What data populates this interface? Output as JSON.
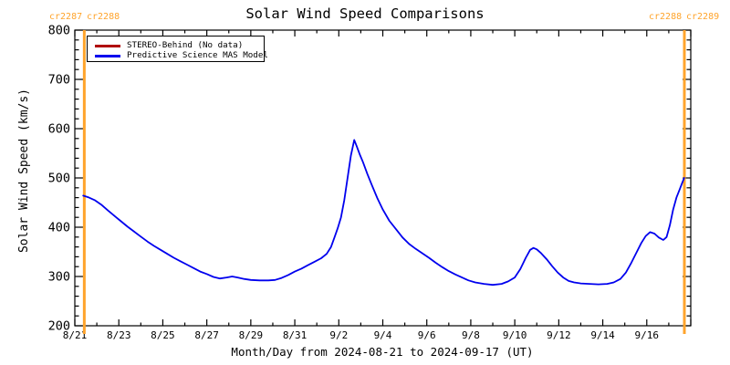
{
  "title_bar": {
    "app_title": "Solar Wind Speed Comparisons"
  },
  "colors": {
    "orange": "#FFA42C",
    "blue": "#0000EE",
    "red": "#B00000",
    "black": "#000000",
    "background": "#FFFFFF"
  },
  "carrington": {
    "left": [
      "cr2287",
      "cr2288"
    ],
    "right": [
      "cr2288",
      "cr2289"
    ]
  },
  "legend": {
    "position": "top-left",
    "items": [
      {
        "label": "STEREO-Behind (No data)",
        "color_hex": "#B00000"
      },
      {
        "label": "Predictive Science MAS Model",
        "color_hex": "#0000EE"
      }
    ]
  },
  "chart_data": {
    "type": "line",
    "title": "Solar Wind Speed Comparisons",
    "xlabel": "Month/Day from 2024-08-21 to 2024-09-17 (UT)",
    "ylabel": "Solar Wind Speed (km/s)",
    "grid": false,
    "legend_position": "top-left",
    "ylim": [
      200,
      800
    ],
    "y_major_step": 100,
    "y_minor_step": 20,
    "x_range_days": [
      0,
      28
    ],
    "x_minor_step_days": 1,
    "x_major_ticks": [
      {
        "day": 0,
        "label": "8/21"
      },
      {
        "day": 2,
        "label": "8/23"
      },
      {
        "day": 4,
        "label": "8/25"
      },
      {
        "day": 6,
        "label": "8/27"
      },
      {
        "day": 8,
        "label": "8/29"
      },
      {
        "day": 10,
        "label": "8/31"
      },
      {
        "day": 12,
        "label": "9/2"
      },
      {
        "day": 14,
        "label": "9/4"
      },
      {
        "day": 16,
        "label": "9/6"
      },
      {
        "day": 18,
        "label": "9/8"
      },
      {
        "day": 20,
        "label": "9/10"
      },
      {
        "day": 22,
        "label": "9/12"
      },
      {
        "day": 24,
        "label": "9/14"
      },
      {
        "day": 26,
        "label": "9/16"
      }
    ],
    "vlines": [
      {
        "day": 0.43,
        "color_hex": "#FFA42C",
        "label_left": "cr2287",
        "label_right": "cr2288"
      },
      {
        "day": 27.71,
        "color_hex": "#FFA42C",
        "label_left": "cr2288",
        "label_right": "cr2289"
      }
    ],
    "series": [
      {
        "name": "STEREO-Behind (No data)",
        "color_hex": "#B00000",
        "points": []
      },
      {
        "name": "Predictive Science MAS Model",
        "color_hex": "#0000EE",
        "points": [
          [
            0.38,
            464
          ],
          [
            0.6,
            461
          ],
          [
            0.9,
            455
          ],
          [
            1.2,
            446
          ],
          [
            1.5,
            434
          ],
          [
            1.8,
            423
          ],
          [
            2.1,
            412
          ],
          [
            2.4,
            401
          ],
          [
            2.7,
            391
          ],
          [
            3.0,
            381
          ],
          [
            3.3,
            371
          ],
          [
            3.6,
            362
          ],
          [
            3.9,
            354
          ],
          [
            4.2,
            346
          ],
          [
            4.5,
            338
          ],
          [
            4.8,
            331
          ],
          [
            5.1,
            324
          ],
          [
            5.4,
            317
          ],
          [
            5.7,
            310
          ],
          [
            6.0,
            305
          ],
          [
            6.3,
            299
          ],
          [
            6.6,
            296
          ],
          [
            6.9,
            298
          ],
          [
            7.15,
            300
          ],
          [
            7.4,
            298
          ],
          [
            7.7,
            295
          ],
          [
            8.0,
            293
          ],
          [
            8.4,
            292
          ],
          [
            8.8,
            292
          ],
          [
            9.1,
            293
          ],
          [
            9.4,
            297
          ],
          [
            9.7,
            303
          ],
          [
            10.0,
            310
          ],
          [
            10.3,
            316
          ],
          [
            10.6,
            323
          ],
          [
            10.9,
            330
          ],
          [
            11.2,
            337
          ],
          [
            11.45,
            346
          ],
          [
            11.65,
            360
          ],
          [
            11.8,
            379
          ],
          [
            11.95,
            398
          ],
          [
            12.1,
            420
          ],
          [
            12.25,
            455
          ],
          [
            12.4,
            500
          ],
          [
            12.55,
            545
          ],
          [
            12.7,
            577
          ],
          [
            12.8,
            566
          ],
          [
            12.95,
            548
          ],
          [
            13.1,
            532
          ],
          [
            13.3,
            508
          ],
          [
            13.5,
            486
          ],
          [
            13.75,
            459
          ],
          [
            14.0,
            436
          ],
          [
            14.3,
            413
          ],
          [
            14.6,
            396
          ],
          [
            14.9,
            379
          ],
          [
            15.2,
            366
          ],
          [
            15.5,
            356
          ],
          [
            15.8,
            347
          ],
          [
            16.1,
            338
          ],
          [
            16.4,
            328
          ],
          [
            16.7,
            319
          ],
          [
            17.0,
            311
          ],
          [
            17.3,
            304
          ],
          [
            17.6,
            298
          ],
          [
            17.9,
            292
          ],
          [
            18.2,
            288
          ],
          [
            18.6,
            285
          ],
          [
            19.0,
            283
          ],
          [
            19.4,
            285
          ],
          [
            19.7,
            290
          ],
          [
            20.0,
            298
          ],
          [
            20.25,
            315
          ],
          [
            20.5,
            338
          ],
          [
            20.7,
            354
          ],
          [
            20.85,
            358
          ],
          [
            21.0,
            355
          ],
          [
            21.2,
            347
          ],
          [
            21.45,
            335
          ],
          [
            21.7,
            321
          ],
          [
            21.95,
            308
          ],
          [
            22.2,
            298
          ],
          [
            22.45,
            291
          ],
          [
            22.7,
            288
          ],
          [
            23.0,
            286
          ],
          [
            23.4,
            285
          ],
          [
            23.8,
            284
          ],
          [
            24.2,
            285
          ],
          [
            24.5,
            288
          ],
          [
            24.8,
            295
          ],
          [
            25.05,
            308
          ],
          [
            25.3,
            328
          ],
          [
            25.55,
            350
          ],
          [
            25.75,
            368
          ],
          [
            25.95,
            382
          ],
          [
            26.15,
            390
          ],
          [
            26.35,
            387
          ],
          [
            26.55,
            379
          ],
          [
            26.75,
            374
          ],
          [
            26.9,
            380
          ],
          [
            27.05,
            404
          ],
          [
            27.2,
            436
          ],
          [
            27.35,
            460
          ],
          [
            27.5,
            477
          ],
          [
            27.6,
            489
          ],
          [
            27.7,
            500
          ]
        ]
      }
    ]
  }
}
